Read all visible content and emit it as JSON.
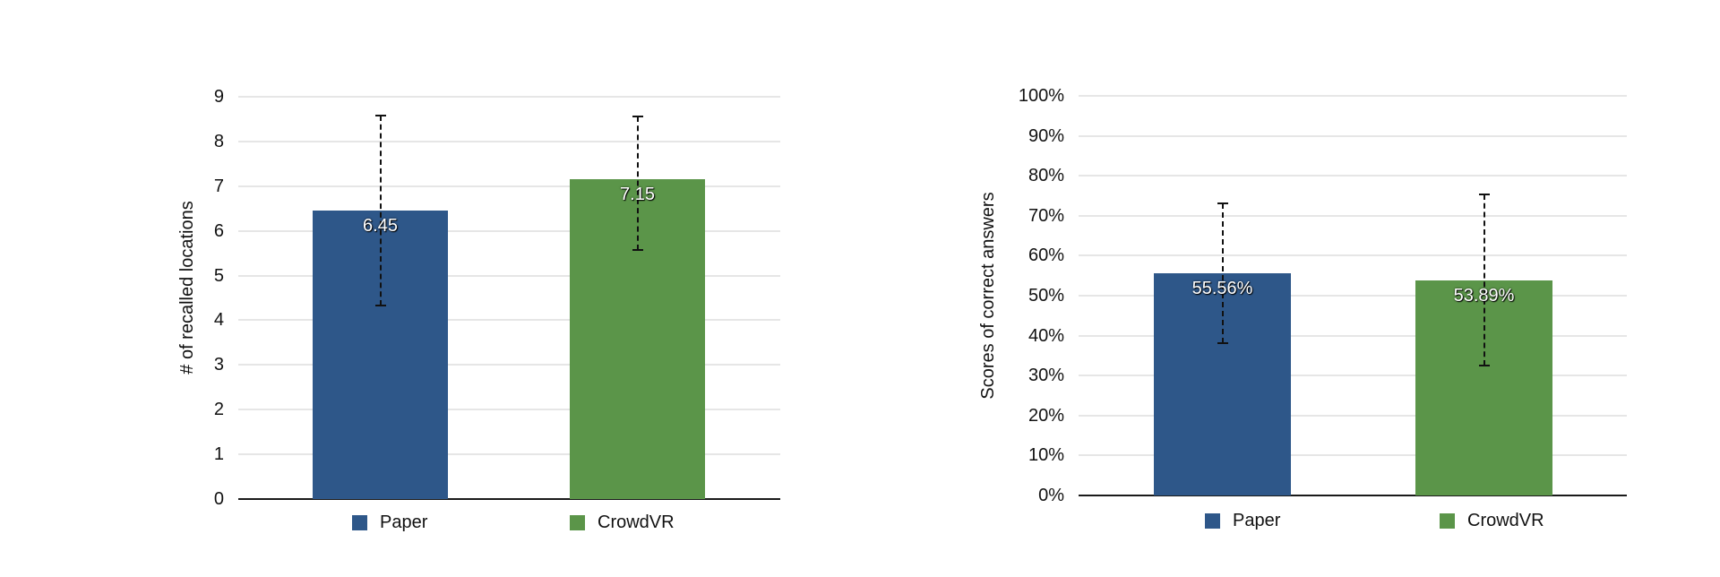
{
  "colors": {
    "paper": "#2e5789",
    "crowdvr": "#5b9549"
  },
  "chart_data": [
    {
      "type": "bar",
      "title": "",
      "xlabel": "",
      "ylabel": "# of recalled locations",
      "ylim": [
        0,
        9
      ],
      "yticks": [
        "0",
        "1",
        "2",
        "3",
        "4",
        "5",
        "6",
        "7",
        "8",
        "9"
      ],
      "grid": true,
      "legend_position": "bottom",
      "categories": [
        "Paper",
        "CrowdVR"
      ],
      "values": [
        6.45,
        7.15
      ],
      "value_labels": [
        "6.45",
        "7.15"
      ],
      "error_bars": [
        {
          "low": 4.33,
          "high": 8.57
        },
        {
          "low": 5.57,
          "high": 8.55
        }
      ],
      "legend": [
        "Paper",
        "CrowdVR"
      ]
    },
    {
      "type": "bar",
      "title": "",
      "xlabel": "",
      "ylabel": "Scores of correct answers",
      "ylim": [
        0,
        100
      ],
      "yticks": [
        "0%",
        "10%",
        "20%",
        "30%",
        "40%",
        "50%",
        "60%",
        "70%",
        "80%",
        "90%",
        "100%"
      ],
      "grid": true,
      "legend_position": "bottom",
      "categories": [
        "Paper",
        "CrowdVR"
      ],
      "values": [
        55.56,
        53.89
      ],
      "value_labels": [
        "55.56%",
        "53.89%"
      ],
      "error_bars": [
        {
          "low": 38.1,
          "high": 73.0
        },
        {
          "low": 32.4,
          "high": 75.3
        }
      ],
      "legend": [
        "Paper",
        "CrowdVR"
      ]
    }
  ]
}
